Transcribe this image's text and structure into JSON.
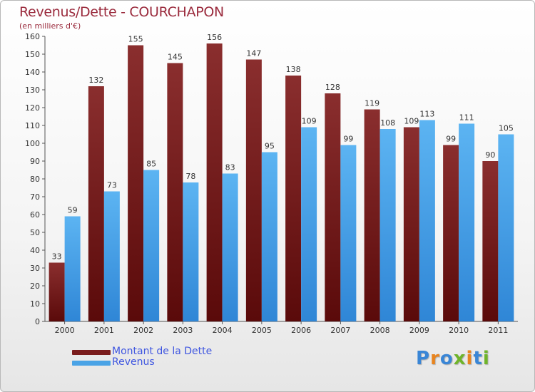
{
  "header": {
    "title": "Revenus/Dette - COURCHAPON",
    "subtitle": "(en milliers d'€)"
  },
  "chart_data": {
    "type": "bar",
    "title": "Revenus/Dette - COURCHAPON",
    "subtitle": "(en milliers d'€)",
    "xlabel": "",
    "ylabel": "",
    "categories": [
      "2000",
      "2001",
      "2002",
      "2003",
      "2004",
      "2005",
      "2006",
      "2007",
      "2008",
      "2009",
      "2010",
      "2011"
    ],
    "series": [
      {
        "name": "Montant de la Dette",
        "color": "#7a1c1c",
        "values": [
          33,
          132,
          155,
          145,
          156,
          147,
          138,
          128,
          119,
          109,
          99,
          90
        ]
      },
      {
        "name": "Revenus",
        "color": "#4aa3e6",
        "values": [
          59,
          73,
          85,
          78,
          83,
          95,
          109,
          99,
          108,
          113,
          111,
          105
        ]
      }
    ],
    "ylim": [
      0,
      160
    ],
    "yticks": [
      0,
      10,
      20,
      30,
      40,
      50,
      60,
      70,
      80,
      90,
      100,
      110,
      120,
      130,
      140,
      150,
      160
    ],
    "grid": false,
    "data_labels": true,
    "legend_position": "bottom-left"
  },
  "legend": {
    "items": [
      {
        "label": "Montant de la Dette",
        "color": "#7a1c1c"
      },
      {
        "label": "Revenus",
        "color": "#4aa3e6"
      }
    ]
  },
  "brand": {
    "letters": [
      {
        "char": "P",
        "color": "#3a86d6"
      },
      {
        "char": "r",
        "color": "#e8841f"
      },
      {
        "char": "o",
        "color": "#3a86d6"
      },
      {
        "char": "x",
        "color": "#6fb42a"
      },
      {
        "char": "i",
        "color": "#e8841f"
      },
      {
        "char": "t",
        "color": "#3a86d6"
      },
      {
        "char": "i",
        "color": "#6fb42a"
      }
    ]
  }
}
